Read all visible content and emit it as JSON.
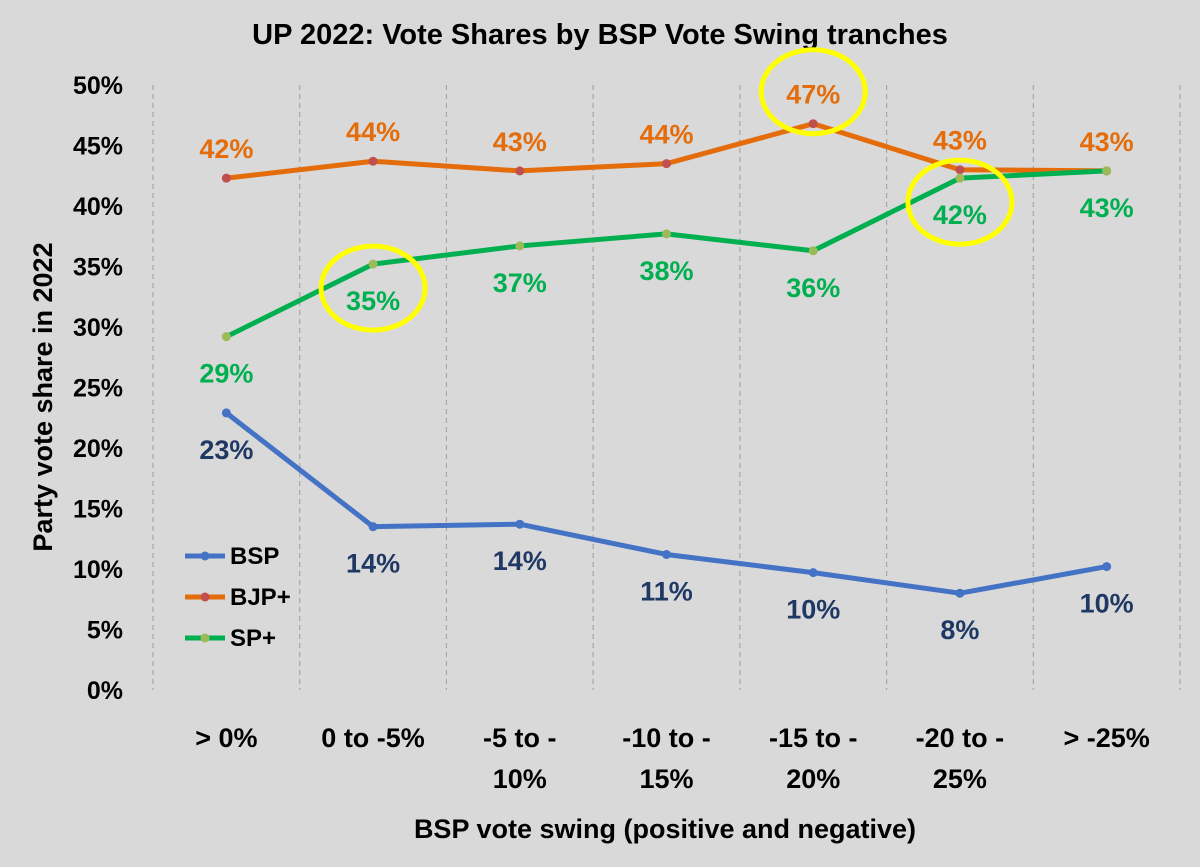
{
  "chart_data": {
    "type": "line",
    "title": "UP 2022: Vote Shares by BSP Vote Swing tranches",
    "xlabel": "BSP vote swing (positive and negative)",
    "ylabel": "Party vote share in 2022",
    "categories": [
      [
        "> 0%"
      ],
      [
        "0 to -5%"
      ],
      [
        "-5 to -",
        "10%"
      ],
      [
        "-10 to -",
        "15%"
      ],
      [
        "-15 to -",
        "20%"
      ],
      [
        "-20 to -",
        "25%"
      ],
      [
        "> -25%"
      ]
    ],
    "ylim": [
      0,
      50
    ],
    "yticks": [
      "0%",
      "5%",
      "10%",
      "15%",
      "20%",
      "25%",
      "30%",
      "35%",
      "40%",
      "45%",
      "50%"
    ],
    "grid": "vertical dashed",
    "legend": "bottom-left",
    "series": [
      {
        "name": "BSP",
        "color": "#4472c4",
        "label_color": "#1f3864",
        "values": [
          22.9,
          13.5,
          13.7,
          11.2,
          9.7,
          8.0,
          10.2
        ],
        "labels": [
          "23%",
          "14%",
          "14%",
          "11%",
          "10%",
          "8%",
          "10%"
        ]
      },
      {
        "name": "BJP+",
        "color": "#e46c0a",
        "label_color": "#e46c0a",
        "values": [
          42.3,
          43.7,
          42.9,
          43.5,
          46.8,
          43.0,
          42.9
        ],
        "labels": [
          "42%",
          "44%",
          "43%",
          "44%",
          "47%",
          "43%",
          "43%"
        ]
      },
      {
        "name": "SP+",
        "color": "#00b050",
        "label_color": "#00b050",
        "values": [
          29.2,
          35.2,
          36.7,
          37.7,
          36.3,
          42.3,
          42.9
        ],
        "labels": [
          "29%",
          "35%",
          "37%",
          "38%",
          "36%",
          "42%",
          "43%"
        ]
      }
    ],
    "highlights": [
      {
        "series": 2,
        "index": 1,
        "color": "#ffff00"
      },
      {
        "series": 1,
        "index": 4,
        "color": "#ffff00"
      },
      {
        "series": 2,
        "index": 5,
        "color": "#ffff00"
      }
    ]
  }
}
